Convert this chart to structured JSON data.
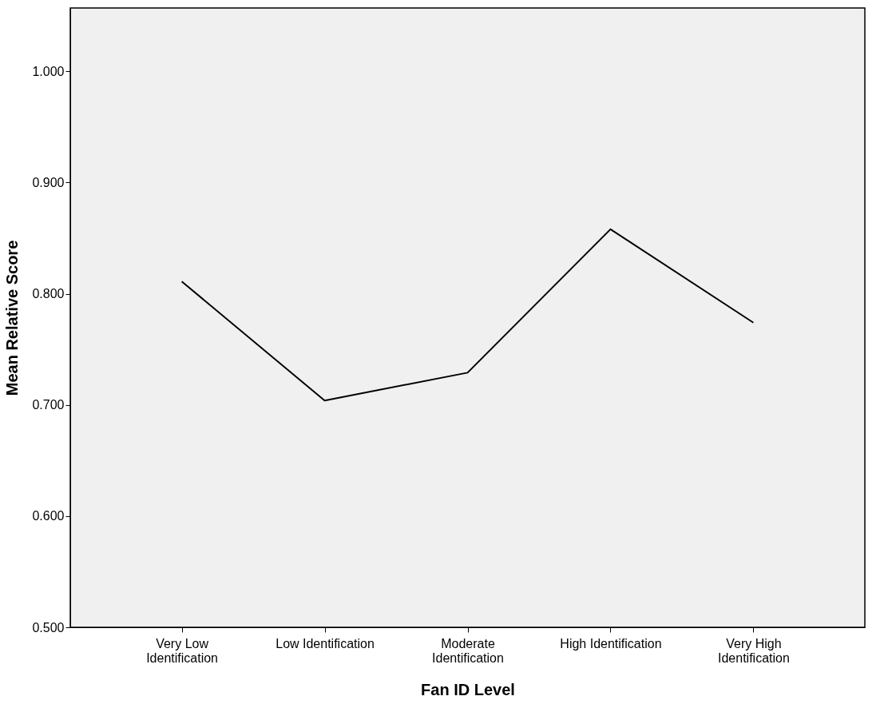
{
  "chart_data": {
    "type": "line",
    "xlabel": "Fan ID Level",
    "ylabel": "Mean Relative Score",
    "categories": [
      "Very Low\nIdentification",
      "Low  Identification",
      "Moderate\nIdentification",
      "High Identification",
      "Very High\nIdentification"
    ],
    "series": [
      {
        "color": "#000000",
        "values": [
          0.811,
          0.704,
          0.729,
          0.858,
          0.774
        ]
      }
    ],
    "ylim": [
      0.5,
      1.057
    ],
    "yticks": [
      {
        "value": 0.5,
        "label": "0.500"
      },
      {
        "value": 0.6,
        "label": "0.600"
      },
      {
        "value": 0.7,
        "label": "0.700"
      },
      {
        "value": 0.8,
        "label": "0.800"
      },
      {
        "value": 0.9,
        "label": "0.900"
      },
      {
        "value": 1.0,
        "label": "1.000"
      }
    ],
    "grid": false
  }
}
